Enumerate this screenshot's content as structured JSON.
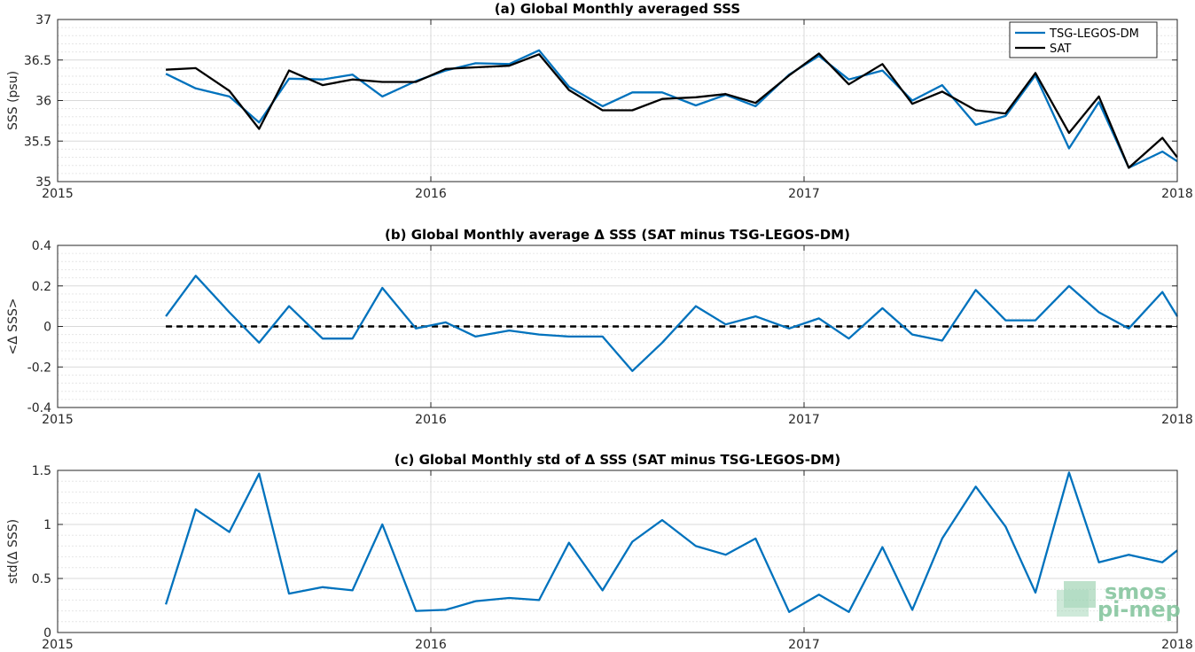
{
  "colors": {
    "tsg": "#0072BD",
    "sat": "#000000",
    "grid": "#d9d9d9",
    "axis": "#262626",
    "logo": "#7fc39a"
  },
  "logo": {
    "line1": "smos",
    "line2": "pi-mep"
  },
  "chart_data": [
    {
      "type": "line",
      "title": "(a) Global Monthly averaged SSS",
      "ylabel": "SSS (psu)",
      "xlim": [
        2015,
        2018
      ],
      "ylim": [
        35,
        37
      ],
      "xticks": [
        2015,
        2016,
        2017,
        2018
      ],
      "xticklabels": [
        "2015",
        "2016",
        "2017",
        "2018"
      ],
      "yticks": [
        35,
        35.5,
        36,
        36.5,
        37
      ],
      "yticklabels": [
        "35",
        "35.5",
        "36",
        "36.5",
        "37"
      ],
      "grid": true,
      "legend": "top-right",
      "x": [
        2015.29,
        2015.37,
        2015.46,
        2015.54,
        2015.62,
        2015.71,
        2015.79,
        2015.87,
        2015.96,
        2016.04,
        2016.12,
        2016.21,
        2016.29,
        2016.37,
        2016.46,
        2016.54,
        2016.62,
        2016.71,
        2016.79,
        2016.87,
        2016.96,
        2017.04,
        2017.12,
        2017.21,
        2017.29,
        2017.37,
        2017.46,
        2017.54,
        2017.62,
        2017.71,
        2017.79,
        2017.87,
        2017.96,
        2018.0
      ],
      "series": [
        {
          "name": "TSG-LEGOS-DM",
          "color": "#0072BD",
          "values": [
            36.33,
            36.15,
            36.05,
            35.73,
            36.27,
            36.26,
            36.32,
            36.05,
            36.24,
            36.37,
            36.46,
            36.45,
            36.62,
            36.17,
            35.93,
            36.1,
            36.1,
            35.94,
            36.07,
            35.93,
            36.32,
            36.55,
            36.26,
            36.37,
            36.0,
            36.19,
            35.7,
            35.81,
            36.31,
            35.41,
            35.98,
            35.17,
            35.37,
            35.25
          ]
        },
        {
          "name": "SAT",
          "color": "#000000",
          "values": [
            36.38,
            36.4,
            36.12,
            35.65,
            36.37,
            36.19,
            36.26,
            36.23,
            36.23,
            36.39,
            36.41,
            36.43,
            36.57,
            36.13,
            35.88,
            35.88,
            36.02,
            36.04,
            36.08,
            35.97,
            36.31,
            36.58,
            36.2,
            36.45,
            35.96,
            36.11,
            35.88,
            35.84,
            36.34,
            35.6,
            36.05,
            35.17,
            35.54,
            35.3
          ]
        }
      ]
    },
    {
      "type": "line",
      "title": "(b) Global Monthly average Δ SSS (SAT minus TSG-LEGOS-DM)",
      "ylabel": "<Δ SSS>",
      "xlim": [
        2015,
        2018
      ],
      "ylim": [
        -0.4,
        0.4
      ],
      "xticks": [
        2015,
        2016,
        2017,
        2018
      ],
      "xticklabels": [
        "2015",
        "2016",
        "2017",
        "2018"
      ],
      "yticks": [
        -0.4,
        -0.2,
        0,
        0.2,
        0.4
      ],
      "yticklabels": [
        "-0.4",
        "-0.2",
        "0",
        "0.2",
        "0.4"
      ],
      "grid": true,
      "zero_line": true,
      "x": [
        2015.29,
        2015.37,
        2015.46,
        2015.54,
        2015.62,
        2015.71,
        2015.79,
        2015.87,
        2015.96,
        2016.04,
        2016.12,
        2016.21,
        2016.29,
        2016.37,
        2016.46,
        2016.54,
        2016.62,
        2016.71,
        2016.79,
        2016.87,
        2016.96,
        2017.04,
        2017.12,
        2017.21,
        2017.29,
        2017.37,
        2017.46,
        2017.54,
        2017.62,
        2017.71,
        2017.79,
        2017.87,
        2017.96,
        2018.0
      ],
      "series": [
        {
          "color": "#0072BD",
          "values": [
            0.05,
            0.25,
            0.07,
            -0.08,
            0.1,
            -0.06,
            -0.06,
            0.19,
            -0.01,
            0.02,
            -0.05,
            -0.02,
            -0.04,
            -0.05,
            -0.05,
            -0.22,
            -0.08,
            0.1,
            0.01,
            0.05,
            -0.01,
            0.04,
            -0.06,
            0.09,
            -0.04,
            -0.07,
            0.18,
            0.03,
            0.03,
            0.2,
            0.07,
            -0.01,
            0.17,
            0.05
          ]
        }
      ]
    },
    {
      "type": "line",
      "title": "(c) Global Monthly std of Δ SSS (SAT minus TSG-LEGOS-DM)",
      "ylabel": "std(Δ SSS)",
      "xlim": [
        2015,
        2018
      ],
      "ylim": [
        0,
        1.5
      ],
      "xticks": [
        2015,
        2016,
        2017,
        2018
      ],
      "xticklabels": [
        "2015",
        "2016",
        "2017",
        "2018"
      ],
      "yticks": [
        0,
        0.5,
        1,
        1.5
      ],
      "yticklabels": [
        "0",
        "0.5",
        "1",
        "1.5"
      ],
      "grid": true,
      "x": [
        2015.29,
        2015.37,
        2015.46,
        2015.54,
        2015.62,
        2015.71,
        2015.79,
        2015.87,
        2015.96,
        2016.04,
        2016.12,
        2016.21,
        2016.29,
        2016.37,
        2016.46,
        2016.54,
        2016.62,
        2016.71,
        2016.79,
        2016.87,
        2016.96,
        2017.04,
        2017.12,
        2017.21,
        2017.29,
        2017.37,
        2017.46,
        2017.54,
        2017.62,
        2017.71,
        2017.79,
        2017.87,
        2017.96,
        2018.0
      ],
      "series": [
        {
          "color": "#0072BD",
          "values": [
            0.26,
            1.14,
            0.93,
            1.47,
            0.36,
            0.42,
            0.39,
            1.0,
            0.2,
            0.21,
            0.29,
            0.32,
            0.3,
            0.83,
            0.39,
            0.84,
            1.04,
            0.8,
            0.72,
            0.87,
            0.19,
            0.35,
            0.19,
            0.79,
            0.21,
            0.87,
            1.35,
            0.98,
            0.37,
            1.48,
            0.65,
            0.72,
            0.65,
            0.76
          ]
        }
      ]
    }
  ]
}
